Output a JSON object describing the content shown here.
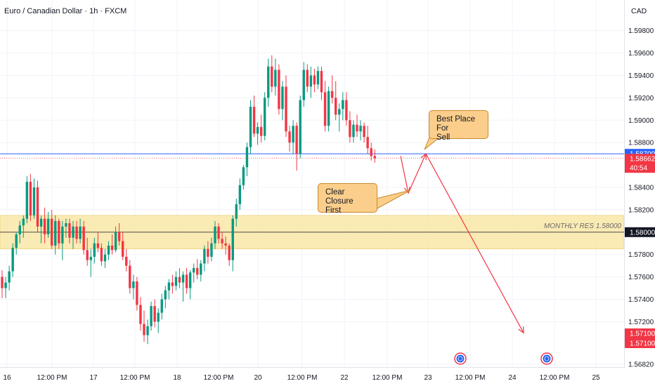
{
  "header": {
    "symbol_name": "Euro / Canadian Dollar",
    "timeframe": "1h",
    "source": "FXCM",
    "separator": "·"
  },
  "price_axis": {
    "currency": "CAD",
    "ticks": [
      "1.59800",
      "1.59600",
      "1.59400",
      "1.59200",
      "1.59000",
      "1.58800",
      "1.58400",
      "1.58200",
      "1.57800",
      "1.57600",
      "1.57400",
      "1.57200",
      "1.56820"
    ]
  },
  "price_badges": [
    {
      "name": "blue-line-price",
      "value": "1.58700",
      "color": "#2962ff",
      "text_color": "#ffffff"
    },
    {
      "name": "current-price",
      "value": "1.58662",
      "color": "#f23645",
      "text_color": "#ffffff"
    },
    {
      "name": "countdown",
      "value": "40:54",
      "color": "#f23645",
      "text_color": "#ffffff"
    },
    {
      "name": "monthly-res-price",
      "value": "1.58000",
      "color": "#131722",
      "text_color": "#ffffff"
    },
    {
      "name": "target-price-1",
      "value": "1.57100",
      "color": "#f23645",
      "text_color": "#ffffff"
    },
    {
      "name": "target-price-2",
      "value": "1.57100",
      "color": "#f23645",
      "text_color": "#ffffff"
    }
  ],
  "time_axis": {
    "labels": [
      "16",
      "12:00 PM",
      "17",
      "12:00 PM",
      "18",
      "12:00 PM",
      "20",
      "12:00 PM",
      "22",
      "12:00 PM",
      "23",
      "12:00 PM",
      "24",
      "12:00 PM",
      "25"
    ]
  },
  "zone": {
    "label": "MONTHLY RES 1.58000",
    "price_low": 1.5785,
    "price_high": 1.5815,
    "price_mid": 1.58,
    "fill_color": "#f9e6a6"
  },
  "annotations": {
    "best_place": "Best Place For\nSell",
    "clear_closure": "Clear Closure\nFirst",
    "note_color": "#fbce8b",
    "arrow_color": "#f23645"
  },
  "chart_data": {
    "type": "candlestick",
    "title": "Euro / Canadian Dollar · 1h · FXCM",
    "xlabel": "",
    "ylabel": "",
    "ylim": [
      1.5682,
      1.5998
    ],
    "up_color": "#089981",
    "down_color": "#f23645",
    "horizontal_lines": [
      {
        "price": 1.587,
        "color": "#2962ff"
      },
      {
        "price": 1.58662,
        "color": "#f23645"
      },
      {
        "price": 1.58,
        "color": "#131722"
      }
    ],
    "projected_path": [
      {
        "date": "Mar 22 ~20:00",
        "price": 1.5868
      },
      {
        "date": "Mar 22 ~21:00",
        "price": 1.5835
      },
      {
        "date": "Mar 22 ~23:00",
        "price": 1.587
      },
      {
        "date": "Mar 24 ~05:00",
        "price": 1.571
      }
    ],
    "series": [
      {
        "name": "",
        "candles": [
          [
            1.576,
            1.5766,
            1.5741,
            1.575
          ],
          [
            1.575,
            1.576,
            1.5741,
            1.5755
          ],
          [
            1.5755,
            1.577,
            1.5748,
            1.5765
          ],
          [
            1.5765,
            1.579,
            1.576,
            1.5786
          ],
          [
            1.5786,
            1.58,
            1.578,
            1.5798
          ],
          [
            1.5798,
            1.581,
            1.579,
            1.5806
          ],
          [
            1.5806,
            1.5815,
            1.5795,
            1.5812
          ],
          [
            1.5812,
            1.585,
            1.5808,
            1.5845
          ],
          [
            1.5845,
            1.5852,
            1.581,
            1.5815
          ],
          [
            1.5815,
            1.5848,
            1.5812,
            1.584
          ],
          [
            1.584,
            1.5846,
            1.58,
            1.5805
          ],
          [
            1.5805,
            1.5815,
            1.579,
            1.5812
          ],
          [
            1.5812,
            1.5822,
            1.579,
            1.5798
          ],
          [
            1.5798,
            1.5818,
            1.5795,
            1.5812
          ],
          [
            1.5812,
            1.582,
            1.5785,
            1.5788
          ],
          [
            1.5788,
            1.5815,
            1.578,
            1.581
          ],
          [
            1.581,
            1.5812,
            1.5785,
            1.579
          ],
          [
            1.579,
            1.581,
            1.5775,
            1.5805
          ],
          [
            1.5805,
            1.5812,
            1.5795,
            1.5808
          ],
          [
            1.5808,
            1.5812,
            1.579,
            1.5795
          ],
          [
            1.5795,
            1.581,
            1.5785,
            1.5805
          ],
          [
            1.5805,
            1.581,
            1.579,
            1.5794
          ],
          [
            1.5794,
            1.5812,
            1.579,
            1.5805
          ],
          [
            1.5805,
            1.581,
            1.578,
            1.5784
          ],
          [
            1.5784,
            1.5795,
            1.577,
            1.5775
          ],
          [
            1.5775,
            1.5785,
            1.576,
            1.5778
          ],
          [
            1.5778,
            1.5795,
            1.5772,
            1.579
          ],
          [
            1.579,
            1.58,
            1.5782,
            1.5786
          ],
          [
            1.5786,
            1.579,
            1.577,
            1.5774
          ],
          [
            1.5774,
            1.5785,
            1.5768,
            1.578
          ],
          [
            1.578,
            1.5792,
            1.5775,
            1.5788
          ],
          [
            1.5788,
            1.5798,
            1.578,
            1.5784
          ],
          [
            1.5784,
            1.5805,
            1.5782,
            1.58
          ],
          [
            1.58,
            1.5808,
            1.5788,
            1.5792
          ],
          [
            1.5792,
            1.58,
            1.5775,
            1.5778
          ],
          [
            1.5778,
            1.5785,
            1.5765,
            1.577
          ],
          [
            1.577,
            1.5775,
            1.5745,
            1.575
          ],
          [
            1.575,
            1.5762,
            1.574,
            1.5756
          ],
          [
            1.5756,
            1.576,
            1.573,
            1.5735
          ],
          [
            1.5735,
            1.5742,
            1.5712,
            1.5718
          ],
          [
            1.5718,
            1.573,
            1.5702,
            1.5708
          ],
          [
            1.5708,
            1.5722,
            1.57,
            1.5716
          ],
          [
            1.5716,
            1.5738,
            1.5712,
            1.5734
          ],
          [
            1.5734,
            1.574,
            1.5715,
            1.572
          ],
          [
            1.572,
            1.5732,
            1.571,
            1.5728
          ],
          [
            1.5728,
            1.5745,
            1.5722,
            1.574
          ],
          [
            1.574,
            1.5752,
            1.5732,
            1.5748
          ],
          [
            1.5748,
            1.5758,
            1.574,
            1.5755
          ],
          [
            1.5755,
            1.5762,
            1.5745,
            1.5752
          ],
          [
            1.5752,
            1.5765,
            1.5748,
            1.576
          ],
          [
            1.576,
            1.5768,
            1.575,
            1.5755
          ],
          [
            1.5755,
            1.5765,
            1.5738,
            1.5762
          ],
          [
            1.5762,
            1.5768,
            1.5745,
            1.575
          ],
          [
            1.575,
            1.5766,
            1.574,
            1.5764
          ],
          [
            1.5764,
            1.5772,
            1.5755,
            1.5768
          ],
          [
            1.5768,
            1.5776,
            1.5758,
            1.5762
          ],
          [
            1.5762,
            1.5775,
            1.5756,
            1.5772
          ],
          [
            1.5772,
            1.5788,
            1.5765,
            1.5785
          ],
          [
            1.5785,
            1.5792,
            1.5772,
            1.5778
          ],
          [
            1.5778,
            1.5795,
            1.5774,
            1.579
          ],
          [
            1.579,
            1.581,
            1.5785,
            1.5805
          ],
          [
            1.5805,
            1.5808,
            1.579,
            1.5794
          ],
          [
            1.5794,
            1.58,
            1.5785,
            1.579
          ],
          [
            1.579,
            1.5796,
            1.578,
            1.5788
          ],
          [
            1.5788,
            1.579,
            1.577,
            1.5775
          ],
          [
            1.5775,
            1.5815,
            1.5765,
            1.5812
          ],
          [
            1.5812,
            1.583,
            1.5805,
            1.5825
          ],
          [
            1.5825,
            1.5848,
            1.582,
            1.5842
          ],
          [
            1.5842,
            1.586,
            1.5838,
            1.5858
          ],
          [
            1.5858,
            1.588,
            1.585,
            1.5876
          ],
          [
            1.5876,
            1.5918,
            1.587,
            1.5912
          ],
          [
            1.5912,
            1.5922,
            1.5885,
            1.5888
          ],
          [
            1.5888,
            1.5898,
            1.5878,
            1.5894
          ],
          [
            1.5894,
            1.5905,
            1.588,
            1.5886
          ],
          [
            1.5886,
            1.5925,
            1.5882,
            1.592
          ],
          [
            1.592,
            1.5955,
            1.5912,
            1.5948
          ],
          [
            1.5948,
            1.5958,
            1.5925,
            1.593
          ],
          [
            1.593,
            1.5955,
            1.5922,
            1.5945
          ],
          [
            1.5945,
            1.595,
            1.5905,
            1.591
          ],
          [
            1.591,
            1.5935,
            1.59,
            1.593
          ],
          [
            1.593,
            1.594,
            1.5885,
            1.589
          ],
          [
            1.589,
            1.5895,
            1.5872,
            1.588
          ],
          [
            1.588,
            1.59,
            1.587,
            1.5895
          ],
          [
            1.5895,
            1.5898,
            1.5855,
            1.587
          ],
          [
            1.587,
            1.5922,
            1.5866,
            1.5918
          ],
          [
            1.5918,
            1.5952,
            1.5912,
            1.5945
          ],
          [
            1.5945,
            1.595,
            1.5925,
            1.593
          ],
          [
            1.593,
            1.5948,
            1.592,
            1.594
          ],
          [
            1.594,
            1.5946,
            1.5925,
            1.5932
          ],
          [
            1.5932,
            1.5948,
            1.5928,
            1.5944
          ],
          [
            1.5944,
            1.5948,
            1.5918,
            1.5925
          ],
          [
            1.5925,
            1.5935,
            1.589,
            1.5895
          ],
          [
            1.5895,
            1.593,
            1.589,
            1.5926
          ],
          [
            1.5926,
            1.594,
            1.5915,
            1.592
          ],
          [
            1.592,
            1.5935,
            1.59,
            1.5905
          ],
          [
            1.5905,
            1.5915,
            1.589,
            1.591
          ],
          [
            1.591,
            1.5925,
            1.59,
            1.5918
          ],
          [
            1.5918,
            1.5925,
            1.5895,
            1.59
          ],
          [
            1.59,
            1.5908,
            1.588,
            1.5885
          ],
          [
            1.5885,
            1.59,
            1.588,
            1.5896
          ],
          [
            1.5896,
            1.5905,
            1.5885,
            1.589
          ],
          [
            1.589,
            1.59,
            1.5882,
            1.5895
          ],
          [
            1.5895,
            1.5898,
            1.588,
            1.5885
          ],
          [
            1.5885,
            1.5895,
            1.587,
            1.5875
          ],
          [
            1.5875,
            1.588,
            1.5864,
            1.5868
          ],
          [
            1.5868,
            1.5874,
            1.5862,
            1.5866
          ]
        ]
      }
    ]
  }
}
